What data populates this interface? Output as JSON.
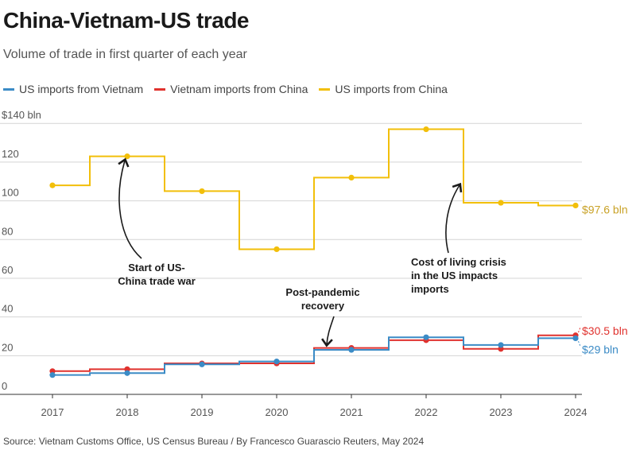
{
  "title": "China-Vietnam-US trade",
  "subtitle": "Volume of trade in first quarter of each year",
  "source": "Source: Vietnam Customs Office, US Census Bureau / By Francesco Guarascio Reuters, May 2024",
  "legend": [
    {
      "label": "US imports from Vietnam",
      "color": "#3b8bc6"
    },
    {
      "label": "Vietnam imports from China",
      "color": "#e0322e"
    },
    {
      "label": "US imports from China",
      "color": "#f2bf0a"
    }
  ],
  "chart_data": {
    "type": "line",
    "step": true,
    "x": [
      2017,
      2018,
      2019,
      2020,
      2021,
      2022,
      2023,
      2024
    ],
    "ylim": [
      0,
      140
    ],
    "yticks": [
      0,
      20,
      40,
      60,
      80,
      100,
      120,
      140
    ],
    "ytick_labels": [
      "0",
      "20",
      "40",
      "60",
      "80",
      "100",
      "120",
      "$140 bln"
    ],
    "grid": true,
    "series": [
      {
        "name": "US imports from China",
        "color": "#f2bf0a",
        "values": [
          108,
          123,
          105,
          75,
          112,
          137,
          99,
          97.6
        ]
      },
      {
        "name": "Vietnam imports from China",
        "color": "#e0322e",
        "values": [
          12,
          13,
          16,
          16,
          24,
          28,
          23.5,
          30.5
        ]
      },
      {
        "name": "US imports from Vietnam",
        "color": "#3b8bc6",
        "values": [
          10,
          11,
          15.5,
          17,
          23,
          29.5,
          25.5,
          29
        ]
      }
    ],
    "end_labels": [
      {
        "text": "$97.6 bln",
        "color": "#c9a227"
      },
      {
        "text": "$30.5 bln",
        "color": "#e0322e"
      },
      {
        "text": "$29 bln",
        "color": "#3b8bc6"
      }
    ],
    "annotations": [
      {
        "lines": [
          "Start of US-",
          "China trade war"
        ]
      },
      {
        "lines": [
          "Post-pandemic",
          "recovery"
        ]
      },
      {
        "lines": [
          "Cost of living crisis",
          "in the US impacts",
          "imports"
        ]
      }
    ]
  }
}
